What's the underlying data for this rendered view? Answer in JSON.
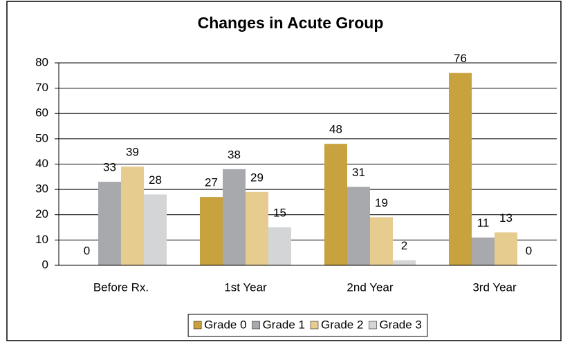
{
  "chart_data": {
    "type": "bar",
    "title": "Changes in Acute Group",
    "categories": [
      "Before Rx.",
      "1st Year",
      "2nd Year",
      "3rd Year"
    ],
    "series": [
      {
        "name": "Grade 0",
        "color": "#c8a23e",
        "values": [
          0,
          27,
          48,
          76
        ]
      },
      {
        "name": "Grade 1",
        "color": "#a7a9ac",
        "values": [
          33,
          38,
          31,
          11
        ]
      },
      {
        "name": "Grade 2",
        "color": "#e6cc8f",
        "values": [
          39,
          29,
          19,
          13
        ]
      },
      {
        "name": "Grade 3",
        "color": "#d4d5d7",
        "values": [
          28,
          15,
          2,
          0
        ]
      }
    ],
    "ylim": [
      0,
      80
    ],
    "yticks": [
      0,
      10,
      20,
      30,
      40,
      50,
      60,
      70,
      80
    ],
    "grid": true,
    "legend": "bottom"
  }
}
